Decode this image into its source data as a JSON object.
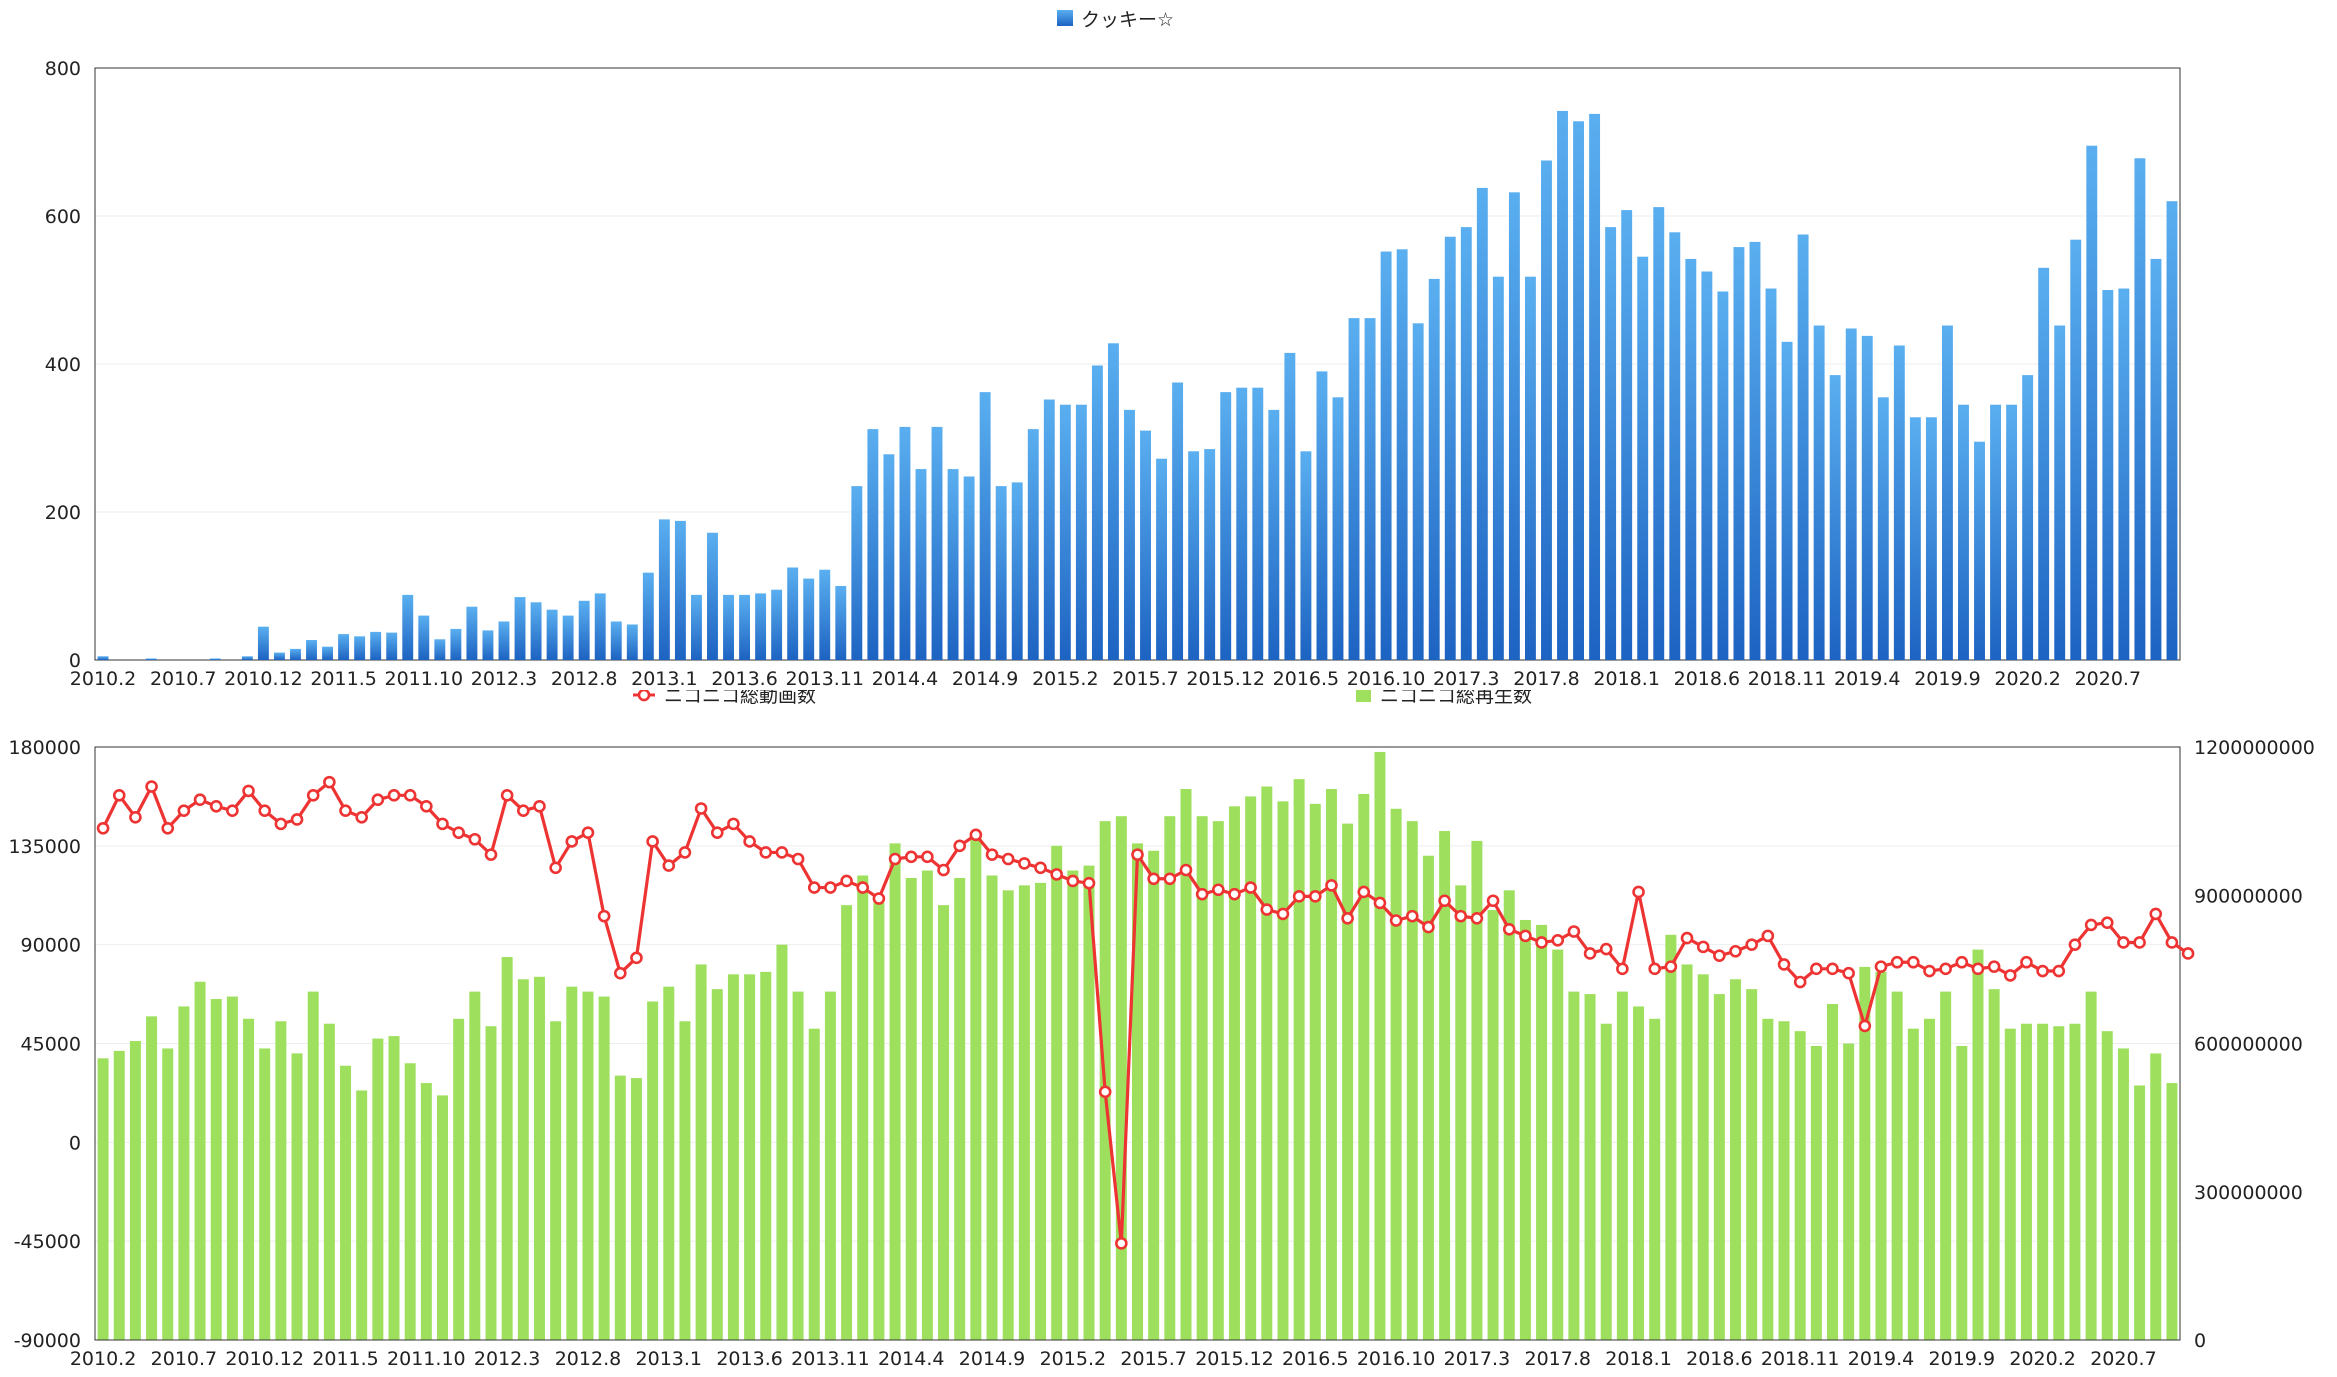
{
  "chart_data": [
    {
      "type": "bar",
      "colors": {
        "bar_top": "#5aaff0",
        "bar_bottom": "#1d63c2"
      },
      "legend": {
        "placement": "top-center",
        "entries": [
          {
            "label": "クッキー☆",
            "marker": "square"
          }
        ]
      },
      "ylim": [
        0,
        800
      ],
      "yticks": [
        "800",
        "600",
        "400",
        "200",
        "0"
      ],
      "ytick_values": [
        800,
        600,
        400,
        200,
        0
      ],
      "x_tick_labels": [
        "2010.2",
        "2010.7",
        "2010.12",
        "2011.5",
        "2011.10",
        "2012.3",
        "2012.8",
        "2013.1",
        "2013.6",
        "2013.11",
        "2014.4",
        "2014.9",
        "2015.2",
        "2015.7",
        "2015.12",
        "2016.5",
        "2016.10",
        "2017.3",
        "2017.8",
        "2018.1",
        "2018.6",
        "2018.11",
        "2019.4",
        "2019.9",
        "2020.2",
        "2020.7"
      ],
      "grid": true,
      "series": [
        {
          "name": "クッキー☆",
          "values": [
            5,
            0,
            0,
            2,
            0,
            0,
            0,
            2,
            0,
            5,
            45,
            10,
            15,
            27,
            18,
            35,
            32,
            38,
            37,
            88,
            60,
            28,
            42,
            72,
            40,
            52,
            85,
            78,
            68,
            60,
            80,
            90,
            52,
            48,
            118,
            190,
            188,
            88,
            172,
            88,
            88,
            90,
            95,
            125,
            110,
            122,
            100,
            235,
            312,
            278,
            315,
            258,
            315,
            258,
            248,
            362,
            235,
            240,
            312,
            352,
            345,
            345,
            398,
            428,
            338,
            310,
            272,
            375,
            282,
            285,
            362,
            368,
            368,
            338,
            415,
            282,
            390,
            355,
            462,
            462,
            552,
            555,
            455,
            515,
            572,
            585,
            638,
            518,
            632,
            518,
            675,
            742,
            728,
            738,
            585,
            608,
            545,
            612,
            578,
            542,
            525,
            498,
            558,
            565,
            502,
            430,
            575,
            452,
            385,
            448,
            438,
            355,
            425,
            328,
            328,
            452,
            345,
            295,
            345,
            345,
            385,
            530,
            452,
            568,
            695,
            500,
            502,
            678,
            542,
            620
          ]
        }
      ]
    },
    {
      "type": "bar",
      "colors": {
        "bar": "#9ee05e",
        "line": "#ee3333",
        "marker_fill": "#ffffff"
      },
      "legend": {
        "placement": "top",
        "entries": [
          {
            "label": "ニコニコ総動画数",
            "marker": "line-circle"
          },
          {
            "label": "ニコニコ総再生数",
            "marker": "square"
          }
        ]
      },
      "ylim_left": [
        -90000,
        180000
      ],
      "ylim_right": [
        0,
        1200000000
      ],
      "yticks_left": [
        "180000",
        "135000",
        "90000",
        "45000",
        "0",
        "-45000",
        "-90000"
      ],
      "ytick_values_left": [
        180000,
        135000,
        90000,
        45000,
        0,
        -45000,
        -90000
      ],
      "yticks_right": [
        "1200000000",
        "900000000",
        "600000000",
        "300000000",
        "0"
      ],
      "ytick_values_right": [
        1200000000,
        900000000,
        600000000,
        300000000,
        0
      ],
      "x_tick_labels": [
        "2010.2",
        "2010.7",
        "2010.12",
        "2011.5",
        "2011.10",
        "2012.3",
        "2012.8",
        "2013.1",
        "2013.6",
        "2013.11",
        "2014.4",
        "2014.9",
        "2015.2",
        "2015.7",
        "2015.12",
        "2016.5",
        "2016.10",
        "2017.3",
        "2017.8",
        "2018.1",
        "2018.6",
        "2018.11",
        "2019.4",
        "2019.9",
        "2020.2",
        "2020.7"
      ],
      "grid": true,
      "series": [
        {
          "name": "ニコニコ総動画数",
          "type": "line",
          "axis": "left",
          "values": [
            143000,
            158000,
            148000,
            162000,
            143000,
            151000,
            156000,
            153000,
            151000,
            160000,
            151000,
            145000,
            147000,
            158000,
            164000,
            151000,
            148000,
            156000,
            158000,
            158000,
            153000,
            145000,
            141000,
            138000,
            131000,
            158000,
            151000,
            153000,
            125000,
            137000,
            141000,
            103000,
            77000,
            84000,
            137000,
            126000,
            132000,
            152000,
            141000,
            145000,
            137000,
            132000,
            132000,
            129000,
            116000,
            116000,
            119000,
            116000,
            111000,
            129000,
            130000,
            130000,
            124000,
            135000,
            140000,
            131000,
            129000,
            127000,
            125000,
            122000,
            119000,
            118000,
            23000,
            -46000,
            131000,
            120000,
            120000,
            124000,
            113000,
            115000,
            113000,
            116000,
            106000,
            104000,
            112000,
            112000,
            117000,
            102000,
            114000,
            109000,
            101000,
            103000,
            98000,
            110000,
            103000,
            102000,
            110000,
            97000,
            94000,
            91000,
            92000,
            96000,
            86000,
            88000,
            79000,
            114000,
            79000,
            80000,
            93000,
            89000,
            85000,
            87000,
            90000,
            94000,
            81000,
            73000,
            79000,
            79000,
            77000,
            53000,
            80000,
            82000,
            82000,
            78000,
            79000,
            82000,
            79000,
            80000,
            76000,
            82000,
            78000,
            78000,
            90000,
            99000,
            100000,
            91000,
            91000,
            104000,
            91000,
            86000
          ]
        },
        {
          "name": "ニコニコ総再生数",
          "type": "bar",
          "axis": "right",
          "values": [
            570000000,
            585000000,
            605000000,
            655000000,
            590000000,
            675000000,
            725000000,
            690000000,
            695000000,
            650000000,
            590000000,
            645000000,
            580000000,
            705000000,
            640000000,
            555000000,
            505000000,
            610000000,
            615000000,
            560000000,
            520000000,
            495000000,
            650000000,
            705000000,
            635000000,
            775000000,
            730000000,
            735000000,
            645000000,
            715000000,
            705000000,
            695000000,
            535000000,
            530000000,
            685000000,
            715000000,
            645000000,
            760000000,
            710000000,
            740000000,
            740000000,
            745000000,
            800000000,
            705000000,
            630000000,
            705000000,
            880000000,
            940000000,
            885000000,
            1005000000,
            935000000,
            950000000,
            880000000,
            935000000,
            1025000000,
            940000000,
            910000000,
            920000000,
            925000000,
            1000000000,
            950000000,
            960000000,
            1050000000,
            1060000000,
            1005000000,
            990000000,
            1060000000,
            1115000000,
            1060000000,
            1050000000,
            1080000000,
            1100000000,
            1120000000,
            1090000000,
            1135000000,
            1085000000,
            1115000000,
            1045000000,
            1105000000,
            1190000000,
            1075000000,
            1050000000,
            980000000,
            1030000000,
            920000000,
            1010000000,
            870000000,
            910000000,
            850000000,
            840000000,
            790000000,
            705000000,
            700000000,
            640000000,
            705000000,
            675000000,
            650000000,
            820000000,
            760000000,
            740000000,
            700000000,
            730000000,
            710000000,
            650000000,
            645000000,
            625000000,
            595000000,
            680000000,
            600000000,
            755000000,
            745000000,
            705000000,
            630000000,
            650000000,
            705000000,
            595000000,
            790000000,
            710000000,
            630000000,
            640000000,
            640000000,
            635000000,
            640000000,
            705000000,
            625000000,
            590000000,
            515000000,
            580000000,
            520000000
          ]
        }
      ]
    }
  ]
}
